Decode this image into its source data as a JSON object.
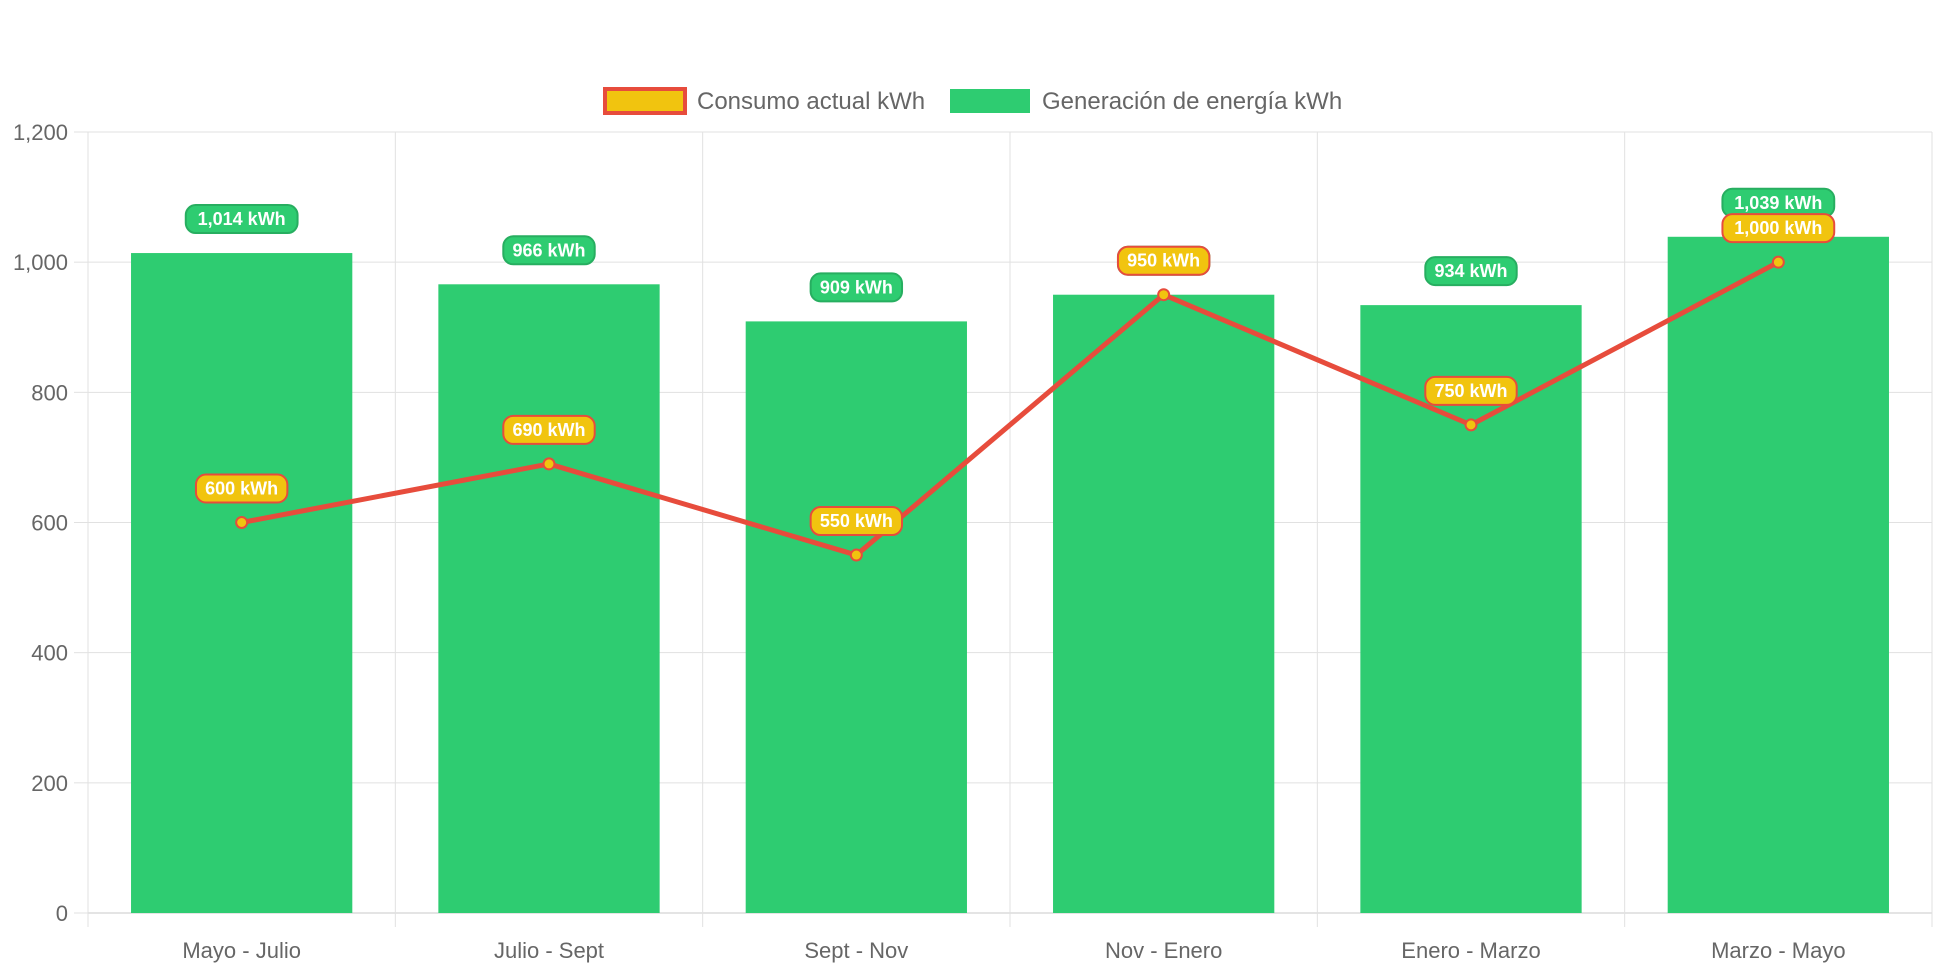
{
  "chart_data": {
    "type": "bar",
    "categories": [
      "Mayo - Julio",
      "Julio - Sept",
      "Sept - Nov",
      "Nov - Enero",
      "Enero - Marzo",
      "Marzo - Mayo"
    ],
    "ylim": [
      0,
      1200
    ],
    "yticks": [
      0,
      200,
      400,
      600,
      800,
      1000,
      1200
    ],
    "ytick_labels": [
      "0",
      "200",
      "400",
      "600",
      "800",
      "1,000",
      "1,200"
    ],
    "grid": true,
    "legend_position": "top",
    "series": [
      {
        "name": "Consumo actual kWh",
        "type": "line",
        "values": [
          600,
          690,
          550,
          950,
          750,
          1000
        ],
        "data_labels": [
          "600 kWh",
          "690 kWh",
          "550 kWh",
          "950 kWh",
          "750 kWh",
          "1,000 kWh"
        ],
        "line_color": "#e74c3c",
        "fill_color": "#f1c40f"
      },
      {
        "name": "Generación de energía kWh",
        "type": "bar",
        "values": [
          1014,
          966,
          909,
          950,
          934,
          1039
        ],
        "data_labels": [
          "1,014 kWh",
          "966 kWh",
          "909 kWh",
          "950 kWh",
          "934 kWh",
          "1,039 kWh"
        ],
        "color": "#2ecc71"
      }
    ]
  }
}
